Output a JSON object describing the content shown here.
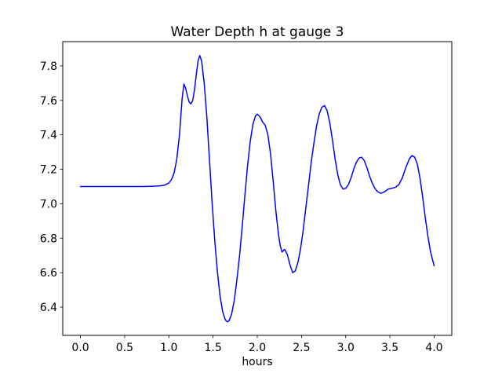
{
  "figure": {
    "background": "#ffffff",
    "axis_color": "#000000",
    "text_color": "#000000"
  },
  "chart_data": {
    "type": "line",
    "title": "Water Depth h at gauge 3",
    "xlabel": "hours",
    "ylabel": "",
    "grid": false,
    "legend": null,
    "xlim": [
      -0.2,
      4.2
    ],
    "ylim": [
      6.236,
      7.941
    ],
    "x_ticks": [
      0.0,
      0.5,
      1.0,
      1.5,
      2.0,
      2.5,
      3.0,
      3.5,
      4.0
    ],
    "x_tick_labels": [
      "0.0",
      "0.5",
      "1.0",
      "1.5",
      "2.0",
      "2.5",
      "3.0",
      "3.5",
      "4.0"
    ],
    "y_ticks": [
      6.4,
      6.6,
      6.8,
      7.0,
      7.2,
      7.4,
      7.6,
      7.8
    ],
    "y_tick_labels": [
      "6.4",
      "6.6",
      "6.8",
      "7.0",
      "7.2",
      "7.4",
      "7.6",
      "7.8"
    ],
    "series": [
      {
        "name": "water-depth-h",
        "color": "#0000ff",
        "line_width": 1.5,
        "x": [
          0.0,
          0.1,
          0.2,
          0.3,
          0.4,
          0.5,
          0.6,
          0.7,
          0.8,
          0.85,
          0.9,
          0.95,
          1.0,
          1.03,
          1.06,
          1.09,
          1.12,
          1.15,
          1.17,
          1.19,
          1.21,
          1.23,
          1.25,
          1.27,
          1.29,
          1.31,
          1.33,
          1.35,
          1.37,
          1.4,
          1.43,
          1.46,
          1.49,
          1.52,
          1.55,
          1.58,
          1.61,
          1.64,
          1.66,
          1.68,
          1.71,
          1.74,
          1.77,
          1.8,
          1.83,
          1.86,
          1.89,
          1.92,
          1.95,
          1.98,
          2.0,
          2.03,
          2.06,
          2.09,
          2.12,
          2.15,
          2.18,
          2.21,
          2.24,
          2.26,
          2.28,
          2.31,
          2.34,
          2.37,
          2.4,
          2.43,
          2.46,
          2.49,
          2.52,
          2.55,
          2.58,
          2.61,
          2.64,
          2.67,
          2.7,
          2.73,
          2.76,
          2.79,
          2.82,
          2.85,
          2.88,
          2.91,
          2.94,
          2.97,
          3.0,
          3.03,
          3.06,
          3.09,
          3.12,
          3.15,
          3.18,
          3.21,
          3.24,
          3.27,
          3.3,
          3.33,
          3.36,
          3.4,
          3.44,
          3.48,
          3.52,
          3.56,
          3.6,
          3.64,
          3.68,
          3.72,
          3.75,
          3.78,
          3.81,
          3.84,
          3.87,
          3.9,
          3.93,
          3.96,
          4.0
        ],
        "y": [
          7.1,
          7.1,
          7.1,
          7.1,
          7.1,
          7.1,
          7.1,
          7.1,
          7.101,
          7.102,
          7.104,
          7.108,
          7.12,
          7.14,
          7.18,
          7.26,
          7.4,
          7.61,
          7.695,
          7.67,
          7.625,
          7.59,
          7.58,
          7.6,
          7.66,
          7.75,
          7.83,
          7.86,
          7.83,
          7.7,
          7.5,
          7.25,
          7.0,
          6.78,
          6.6,
          6.46,
          6.37,
          6.325,
          6.315,
          6.32,
          6.36,
          6.44,
          6.56,
          6.7,
          6.87,
          7.05,
          7.22,
          7.36,
          7.46,
          7.51,
          7.52,
          7.505,
          7.475,
          7.455,
          7.4,
          7.29,
          7.13,
          6.96,
          6.82,
          6.755,
          6.72,
          6.735,
          6.705,
          6.645,
          6.6,
          6.61,
          6.66,
          6.74,
          6.85,
          6.98,
          7.11,
          7.24,
          7.35,
          7.45,
          7.52,
          7.56,
          7.57,
          7.54,
          7.47,
          7.37,
          7.26,
          7.17,
          7.11,
          7.085,
          7.09,
          7.11,
          7.15,
          7.2,
          7.24,
          7.265,
          7.27,
          7.25,
          7.21,
          7.16,
          7.12,
          7.09,
          7.07,
          7.06,
          7.07,
          7.085,
          7.09,
          7.095,
          7.11,
          7.15,
          7.21,
          7.26,
          7.28,
          7.27,
          7.23,
          7.15,
          7.04,
          6.92,
          6.81,
          6.72,
          6.64
        ]
      }
    ]
  }
}
